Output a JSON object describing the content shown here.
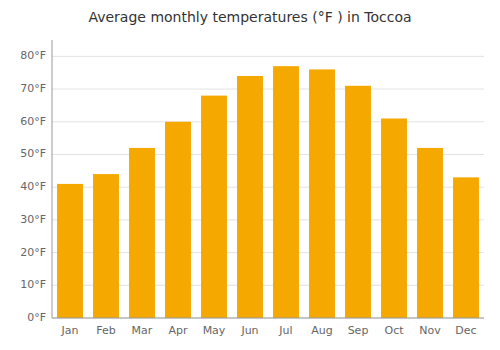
{
  "chart_data": {
    "type": "bar",
    "title": "Average monthly temperatures (°F ) in Toccoa",
    "categories": [
      "Jan",
      "Feb",
      "Mar",
      "Apr",
      "May",
      "Jun",
      "Jul",
      "Aug",
      "Sep",
      "Oct",
      "Nov",
      "Dec"
    ],
    "values": [
      41,
      44,
      52,
      60,
      68,
      74,
      77,
      76,
      71,
      61,
      52,
      43
    ],
    "color": "#F5A800",
    "ylim": [
      0,
      85
    ],
    "yticks": [
      {
        "value": 0,
        "label": "0°F"
      },
      {
        "value": 10,
        "label": "10°F"
      },
      {
        "value": 20,
        "label": "20°F"
      },
      {
        "value": 30,
        "label": "30°F"
      },
      {
        "value": 40,
        "label": "40°F"
      },
      {
        "value": 50,
        "label": "50°F"
      },
      {
        "value": 60,
        "label": "60°F"
      },
      {
        "value": 70,
        "label": "70°F"
      },
      {
        "value": 80,
        "label": "80°F"
      }
    ],
    "grid": true
  }
}
